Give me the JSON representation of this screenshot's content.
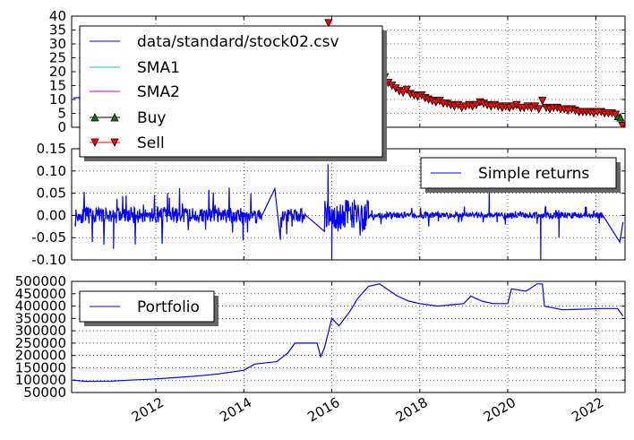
{
  "chart_data": [
    {
      "type": "line",
      "title": "",
      "xlabel": "",
      "ylabel": "",
      "ylim": [
        0,
        40
      ],
      "yticks": [
        "0",
        "5",
        "10",
        "15",
        "20",
        "25",
        "30",
        "35",
        "40"
      ],
      "grid": true,
      "legend_placement": "upper-left",
      "series": [
        {
          "name": "data/standard/stock02.csv",
          "color": "#0000ff",
          "points": [
            [
              "2010-02-15",
              10.5
            ],
            [
              "2010-06-01",
              10.8
            ],
            [
              "2010-10-01",
              11.5
            ],
            [
              "2011-01-01",
              12.0
            ],
            [
              "2011-06-01",
              12.5
            ],
            [
              "2012-01-01",
              13.0
            ],
            [
              "2012-06-01",
              13.5
            ],
            [
              "2013-01-01",
              14.0
            ],
            [
              "2013-06-01",
              14.5
            ],
            [
              "2014-01-01",
              15.0
            ],
            [
              "2014-06-01",
              16.0
            ],
            [
              "2015-01-01",
              17.0
            ],
            [
              "2015-06-01",
              18.0
            ],
            [
              "2015-10-01",
              20.0
            ],
            [
              "2015-12-01",
              36.0
            ],
            [
              "2016-03-01",
              30.0
            ],
            [
              "2016-06-01",
              26.0
            ],
            [
              "2016-10-01",
              23.0
            ],
            [
              "2017-01-01",
              21.0
            ],
            [
              "2017-03-01",
              18.5
            ],
            [
              "2017-06-01",
              15.0
            ],
            [
              "2017-09-01",
              13.0
            ],
            [
              "2018-01-01",
              11.5
            ],
            [
              "2018-04-01",
              9.5
            ],
            [
              "2018-08-01",
              8.5
            ],
            [
              "2018-12-01",
              7.5
            ],
            [
              "2019-04-01",
              7.8
            ],
            [
              "2019-08-01",
              8.5
            ],
            [
              "2020-01-01",
              7.5
            ],
            [
              "2020-06-01",
              7.0
            ],
            [
              "2020-10-01",
              7.5
            ],
            [
              "2021-03-01",
              7.0
            ],
            [
              "2021-08-01",
              6.0
            ],
            [
              "2022-01-01",
              5.5
            ],
            [
              "2022-06-01",
              5.0
            ],
            [
              "2022-07-20",
              4.0
            ],
            [
              "2022-08-15",
              1.0
            ]
          ]
        },
        {
          "name": "SMA1",
          "color": "#00bfbf",
          "points": []
        },
        {
          "name": "SMA2",
          "color": "#bf00bf",
          "points": []
        }
      ],
      "markers": [
        {
          "name": "Buy",
          "shape": "triangle-up",
          "line_color": "#000000",
          "fill": "#008000",
          "points": [
            [
              "2022-07-05",
              4.0
            ],
            [
              "2022-07-25",
              3.5
            ]
          ]
        },
        {
          "name": "Sell",
          "shape": "triangle-down",
          "line_color": "#ff0000",
          "fill": "#ff0000",
          "points": [
            [
              "2015-12-05",
              37.5
            ],
            [
              "2016-02-01",
              33.0
            ],
            [
              "2016-05-01",
              28.0
            ],
            [
              "2016-08-01",
              25.0
            ],
            [
              "2016-11-01",
              22.5
            ],
            [
              "2017-01-15",
              20.5
            ],
            [
              "2017-02-15",
              19.0
            ],
            [
              "2017-03-15",
              18.0
            ],
            [
              "2017-04-15",
              16.0
            ],
            [
              "2017-05-15",
              15.0
            ],
            [
              "2017-06-15",
              14.0
            ],
            [
              "2017-07-15",
              13.0
            ],
            [
              "2017-08-15",
              12.5
            ],
            [
              "2017-09-15",
              13.5
            ],
            [
              "2017-10-15",
              12.0
            ],
            [
              "2017-11-15",
              11.5
            ],
            [
              "2017-12-15",
              11.0
            ],
            [
              "2018-01-15",
              11.5
            ],
            [
              "2018-02-15",
              10.5
            ],
            [
              "2018-03-15",
              10.0
            ],
            [
              "2018-04-15",
              9.5
            ],
            [
              "2018-05-15",
              9.0
            ],
            [
              "2018-06-15",
              9.5
            ],
            [
              "2018-07-15",
              8.5
            ],
            [
              "2018-08-15",
              8.5
            ],
            [
              "2018-09-15",
              8.0
            ],
            [
              "2018-10-15",
              7.5
            ],
            [
              "2018-11-15",
              8.0
            ],
            [
              "2018-12-15",
              7.0
            ],
            [
              "2019-01-15",
              7.5
            ],
            [
              "2019-02-15",
              8.0
            ],
            [
              "2019-03-15",
              7.5
            ],
            [
              "2019-04-15",
              8.0
            ],
            [
              "2019-05-15",
              9.0
            ],
            [
              "2019-06-15",
              8.5
            ],
            [
              "2019-07-15",
              8.0
            ],
            [
              "2019-08-15",
              7.5
            ],
            [
              "2019-09-15",
              8.0
            ],
            [
              "2019-10-15",
              7.5
            ],
            [
              "2019-11-15",
              7.0
            ],
            [
              "2019-12-15",
              7.5
            ],
            [
              "2020-01-15",
              7.0
            ],
            [
              "2020-02-15",
              7.5
            ],
            [
              "2020-03-15",
              8.0
            ],
            [
              "2020-04-15",
              7.0
            ],
            [
              "2020-05-15",
              7.0
            ],
            [
              "2020-06-15",
              7.5
            ],
            [
              "2020-07-15",
              7.0
            ],
            [
              "2020-08-15",
              7.5
            ],
            [
              "2020-09-15",
              6.5
            ],
            [
              "2020-10-15",
              9.5
            ],
            [
              "2020-11-15",
              7.0
            ],
            [
              "2020-12-15",
              6.5
            ],
            [
              "2021-01-15",
              7.0
            ],
            [
              "2021-02-15",
              7.0
            ],
            [
              "2021-03-15",
              6.5
            ],
            [
              "2021-04-15",
              6.5
            ],
            [
              "2021-05-15",
              6.0
            ],
            [
              "2021-06-15",
              6.5
            ],
            [
              "2021-07-15",
              6.0
            ],
            [
              "2021-08-15",
              5.5
            ],
            [
              "2021-09-15",
              5.5
            ],
            [
              "2021-10-15",
              5.5
            ],
            [
              "2021-11-15",
              5.5
            ],
            [
              "2021-12-15",
              5.0
            ],
            [
              "2022-01-15",
              5.5
            ],
            [
              "2022-02-15",
              5.5
            ],
            [
              "2022-03-15",
              5.0
            ],
            [
              "2022-04-15",
              5.0
            ],
            [
              "2022-05-15",
              5.0
            ],
            [
              "2022-06-15",
              4.5
            ],
            [
              "2022-08-10",
              0.5
            ]
          ]
        }
      ]
    },
    {
      "type": "line",
      "title": "",
      "xlabel": "",
      "ylabel": "",
      "ylim": [
        -0.1,
        0.15
      ],
      "yticks": [
        "0.15",
        "0.10",
        "0.05",
        "0.00",
        "-0.05",
        "-0.10"
      ],
      "grid": true,
      "legend_placement": "upper-right",
      "series": [
        {
          "name": "Simple returns",
          "color": "#0000ff",
          "segments": [
            {
              "start": "2010-03-01",
              "end": "2014-06-01",
              "amplitude": 0.03,
              "seed": 11
            },
            {
              "start": "2014-11-01",
              "end": "2015-06-01",
              "amplitude": 0.025,
              "seed": 23
            },
            {
              "start": "2015-11-01",
              "end": "2016-11-01",
              "amplitude": 0.06,
              "seed": 37
            },
            {
              "start": "2016-11-01",
              "end": "2022-03-01",
              "amplitude": 0.012,
              "seed": 51
            }
          ],
          "notable_points": [
            [
              "2011-01-15",
              -0.075
            ],
            [
              "2014-09-15",
              0.06
            ],
            [
              "2014-11-01",
              -0.04
            ],
            [
              "2015-06-01",
              0.0
            ],
            [
              "2015-12-01",
              0.115
            ],
            [
              "2016-01-01",
              -0.1
            ],
            [
              "2019-08-01",
              0.06
            ],
            [
              "2020-10-01",
              -0.1
            ],
            [
              "2021-03-01",
              -0.05
            ],
            [
              "2022-07-20",
              -0.06
            ],
            [
              "2022-08-15",
              -0.015
            ]
          ]
        }
      ]
    },
    {
      "type": "line",
      "title": "",
      "xlabel": "",
      "ylabel": "",
      "ylim": [
        50000,
        500000
      ],
      "yticks": [
        "500000",
        "450000",
        "400000",
        "350000",
        "300000",
        "250000",
        "200000",
        "150000",
        "100000",
        "50000"
      ],
      "xticks": [
        "2012",
        "2014",
        "2016",
        "2018",
        "2020",
        "2022"
      ],
      "grid": true,
      "legend_placement": "upper-left",
      "series": [
        {
          "name": "Portfolio",
          "color": "#0000ff",
          "points": [
            [
              "2010-02-15",
              100000
            ],
            [
              "2010-06-01",
              95000
            ],
            [
              "2011-01-01",
              96000
            ],
            [
              "2011-06-01",
              100000
            ],
            [
              "2012-01-01",
              105000
            ],
            [
              "2012-06-01",
              110000
            ],
            [
              "2013-01-01",
              118000
            ],
            [
              "2013-06-01",
              125000
            ],
            [
              "2014-01-01",
              140000
            ],
            [
              "2014-04-01",
              165000
            ],
            [
              "2014-10-01",
              175000
            ],
            [
              "2015-01-01",
              210000
            ],
            [
              "2015-03-01",
              250000
            ],
            [
              "2015-06-01",
              250000
            ],
            [
              "2015-09-01",
              250000
            ],
            [
              "2015-10-01",
              195000
            ],
            [
              "2015-11-01",
              230000
            ],
            [
              "2016-01-01",
              350000
            ],
            [
              "2016-03-01",
              320000
            ],
            [
              "2016-06-01",
              380000
            ],
            [
              "2016-08-01",
              430000
            ],
            [
              "2016-11-01",
              480000
            ],
            [
              "2017-02-01",
              490000
            ],
            [
              "2017-04-01",
              470000
            ],
            [
              "2017-07-01",
              440000
            ],
            [
              "2017-10-01",
              420000
            ],
            [
              "2018-01-01",
              410000
            ],
            [
              "2018-06-01",
              400000
            ],
            [
              "2019-01-01",
              410000
            ],
            [
              "2019-03-01",
              440000
            ],
            [
              "2019-06-01",
              420000
            ],
            [
              "2019-09-01",
              410000
            ],
            [
              "2020-01-01",
              410000
            ],
            [
              "2020-02-01",
              470000
            ],
            [
              "2020-06-01",
              460000
            ],
            [
              "2020-09-01",
              490000
            ],
            [
              "2020-10-15",
              490000
            ],
            [
              "2020-11-01",
              400000
            ],
            [
              "2021-04-01",
              385000
            ],
            [
              "2022-03-01",
              390000
            ],
            [
              "2022-07-01",
              390000
            ],
            [
              "2022-08-15",
              360000
            ]
          ]
        }
      ]
    }
  ]
}
